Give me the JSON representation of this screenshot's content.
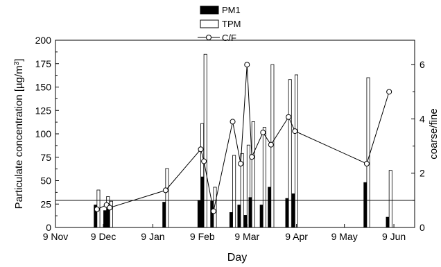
{
  "chart_data": {
    "type": "bar",
    "xlabel": "Day",
    "ylabel": "Particulate concentration [µg/m³]",
    "ylabel_parts": [
      "Particulate concentration [µg/m",
      "3",
      "]"
    ],
    "y2label": "coarse/fine",
    "x_ticks": [
      "9 Nov",
      "9 Dec",
      "9 Jan",
      "9 Feb",
      "9 Mar",
      "9 Apr",
      "9 May",
      "9 Jun"
    ],
    "y_ticks": [
      "0",
      "25",
      "50",
      "75",
      "100",
      "125",
      "150",
      "175",
      "200"
    ],
    "y2_ticks": [
      "0",
      "2",
      "4",
      "6"
    ],
    "ylim": [
      0,
      200
    ],
    "y2lim": [
      0,
      6.9
    ],
    "xlim_days": [
      0,
      225
    ],
    "legend": {
      "position": "top-center",
      "entries": [
        "PM1",
        "TPM",
        "C/F"
      ]
    },
    "series": [
      {
        "name": "PM1",
        "kind": "bar",
        "fill": "#000000"
      },
      {
        "name": "TPM",
        "kind": "bar",
        "fill": "#ffffff"
      },
      {
        "name": "C/F",
        "kind": "line-marker",
        "color": "#000000"
      }
    ],
    "reference_line_cf": 1.0,
    "samples": [
      {
        "date": "29 Nov",
        "day": 26,
        "pm1": 24,
        "tpm": 40,
        "cf": 0.67
      },
      {
        "date": "5 Dec",
        "day": 32,
        "pm1": 18,
        "tpm": 33,
        "cf": 0.83
      },
      {
        "date": "7 Dec",
        "day": 34,
        "pm1": 20,
        "tpm": 28,
        "cf": 0.73
      },
      {
        "date": "11 Jan",
        "day": 69,
        "pm1": 27,
        "tpm": 63,
        "cf": 1.37
      },
      {
        "date": "2 Feb",
        "day": 91,
        "pm1": 29,
        "tpm": 111,
        "cf": 2.88
      },
      {
        "date": "4 Feb",
        "day": 93,
        "pm1": 54,
        "tpm": 185,
        "cf": 2.44
      },
      {
        "date": "10 Feb",
        "day": 99,
        "pm1": 28,
        "tpm": 43,
        "cf": 0.6
      },
      {
        "date": "22 Feb",
        "day": 111,
        "pm1": 16,
        "tpm": 77,
        "cf": 3.9
      },
      {
        "date": "27 Feb",
        "day": 116,
        "pm1": 24,
        "tpm": 79,
        "cf": 2.35
      },
      {
        "date": "3 Mar",
        "day": 120,
        "pm1": 13,
        "tpm": 88,
        "cf": 6.0
      },
      {
        "date": "6 Mar",
        "day": 123,
        "pm1": 32,
        "tpm": 113,
        "cf": 2.6
      },
      {
        "date": "13 Mar",
        "day": 130,
        "pm1": 24,
        "tpm": 107,
        "cf": 3.5
      },
      {
        "date": "18 Mar",
        "day": 135,
        "pm1": 43,
        "tpm": 174,
        "cf": 3.05
      },
      {
        "date": "29 Mar",
        "day": 146,
        "pm1": 31,
        "tpm": 158,
        "cf": 4.07
      },
      {
        "date": "2 Apr",
        "day": 150,
        "pm1": 36,
        "tpm": 163,
        "cf": 3.55
      },
      {
        "date": "17 May",
        "day": 195,
        "pm1": 48,
        "tpm": 160,
        "cf": 2.35
      },
      {
        "date": "31 May",
        "day": 209,
        "pm1": 11,
        "tpm": 61,
        "cf": 5.0
      }
    ]
  }
}
